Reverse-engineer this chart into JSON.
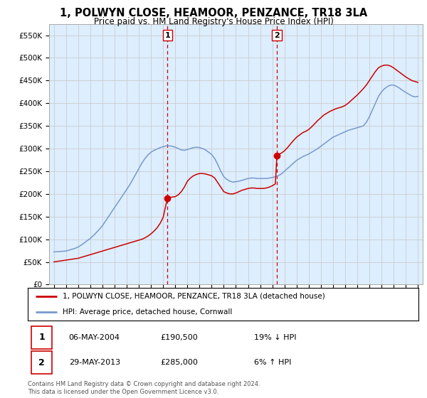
{
  "title": "1, POLWYN CLOSE, HEAMOOR, PENZANCE, TR18 3LA",
  "subtitle": "Price paid vs. HM Land Registry's House Price Index (HPI)",
  "ylim": [
    0,
    575000
  ],
  "transaction1": {
    "year": 2004.35,
    "price": 190500,
    "label": "1"
  },
  "transaction2": {
    "year": 2013.38,
    "price": 285000,
    "label": "2"
  },
  "legend_line1": "1, POLWYN CLOSE, HEAMOOR, PENZANCE, TR18 3LA (detached house)",
  "legend_line2": "HPI: Average price, detached house, Cornwall",
  "table_row1": [
    "1",
    "06-MAY-2004",
    "£190,500",
    "19% ↓ HPI"
  ],
  "table_row2": [
    "2",
    "29-MAY-2013",
    "£285,000",
    "6% ↑ HPI"
  ],
  "footer1": "Contains HM Land Registry data © Crown copyright and database right 2024.",
  "footer2": "This data is licensed under the Open Government Licence v3.0.",
  "line_red_color": "#cc0000",
  "line_blue_color": "#7799cc",
  "marker_color": "#cc0000",
  "grid_color": "#cccccc",
  "background_color": "#ffffff",
  "plot_bg_color": "#ddeeff",
  "hpi_x": [
    1995.0,
    1995.25,
    1995.5,
    1995.75,
    1996.0,
    1996.25,
    1996.5,
    1996.75,
    1997.0,
    1997.25,
    1997.5,
    1997.75,
    1998.0,
    1998.25,
    1998.5,
    1998.75,
    1999.0,
    1999.25,
    1999.5,
    1999.75,
    2000.0,
    2000.25,
    2000.5,
    2000.75,
    2001.0,
    2001.25,
    2001.5,
    2001.75,
    2002.0,
    2002.25,
    2002.5,
    2002.75,
    2003.0,
    2003.25,
    2003.5,
    2003.75,
    2004.0,
    2004.25,
    2004.5,
    2004.75,
    2005.0,
    2005.25,
    2005.5,
    2005.75,
    2006.0,
    2006.25,
    2006.5,
    2006.75,
    2007.0,
    2007.25,
    2007.5,
    2007.75,
    2008.0,
    2008.25,
    2008.5,
    2008.75,
    2009.0,
    2009.25,
    2009.5,
    2009.75,
    2010.0,
    2010.25,
    2010.5,
    2010.75,
    2011.0,
    2011.25,
    2011.5,
    2011.75,
    2012.0,
    2012.25,
    2012.5,
    2012.75,
    2013.0,
    2013.25,
    2013.5,
    2013.75,
    2014.0,
    2014.25,
    2014.5,
    2014.75,
    2015.0,
    2015.25,
    2015.5,
    2015.75,
    2016.0,
    2016.25,
    2016.5,
    2016.75,
    2017.0,
    2017.25,
    2017.5,
    2017.75,
    2018.0,
    2018.25,
    2018.5,
    2018.75,
    2019.0,
    2019.25,
    2019.5,
    2019.75,
    2020.0,
    2020.25,
    2020.5,
    2020.75,
    2021.0,
    2021.25,
    2021.5,
    2021.75,
    2022.0,
    2022.25,
    2022.5,
    2022.75,
    2023.0,
    2023.25,
    2023.5,
    2023.75,
    2024.0,
    2024.25,
    2024.5,
    2024.75,
    2025.0
  ],
  "hpi_y": [
    72000,
    72500,
    73000,
    73500,
    74000,
    76000,
    78000,
    80000,
    83000,
    87000,
    92000,
    97000,
    102000,
    108000,
    115000,
    122000,
    130000,
    140000,
    150000,
    160000,
    170000,
    180000,
    190000,
    200000,
    210000,
    220000,
    232000,
    244000,
    256000,
    268000,
    278000,
    286000,
    292000,
    296000,
    299000,
    302000,
    304000,
    306000,
    306000,
    305000,
    303000,
    300000,
    297000,
    296000,
    298000,
    300000,
    302000,
    303000,
    302000,
    300000,
    297000,
    292000,
    287000,
    278000,
    265000,
    250000,
    238000,
    232000,
    228000,
    226000,
    227000,
    228000,
    230000,
    232000,
    234000,
    235000,
    235000,
    234000,
    234000,
    234000,
    234000,
    235000,
    236000,
    238000,
    240000,
    244000,
    250000,
    256000,
    262000,
    268000,
    274000,
    278000,
    282000,
    285000,
    288000,
    292000,
    296000,
    300000,
    305000,
    310000,
    315000,
    320000,
    325000,
    328000,
    331000,
    334000,
    337000,
    340000,
    342000,
    344000,
    346000,
    348000,
    350000,
    358000,
    370000,
    385000,
    400000,
    415000,
    425000,
    432000,
    437000,
    440000,
    440000,
    437000,
    433000,
    428000,
    424000,
    420000,
    416000,
    414000,
    415000
  ],
  "price_x": [
    1995.0,
    1995.25,
    1995.5,
    1995.75,
    1996.0,
    1996.25,
    1996.5,
    1996.75,
    1997.0,
    1997.25,
    1997.5,
    1997.75,
    1998.0,
    1998.25,
    1998.5,
    1998.75,
    1999.0,
    1999.25,
    1999.5,
    1999.75,
    2000.0,
    2000.25,
    2000.5,
    2000.75,
    2001.0,
    2001.25,
    2001.5,
    2001.75,
    2002.0,
    2002.25,
    2002.5,
    2002.75,
    2003.0,
    2003.25,
    2003.5,
    2003.75,
    2004.0,
    2004.35,
    2004.5,
    2004.75,
    2005.0,
    2005.25,
    2005.5,
    2005.75,
    2006.0,
    2006.25,
    2006.5,
    2006.75,
    2007.0,
    2007.25,
    2007.5,
    2007.75,
    2008.0,
    2008.25,
    2008.5,
    2008.75,
    2009.0,
    2009.25,
    2009.5,
    2009.75,
    2010.0,
    2010.25,
    2010.5,
    2010.75,
    2011.0,
    2011.25,
    2011.5,
    2011.75,
    2012.0,
    2012.25,
    2012.5,
    2012.75,
    2013.0,
    2013.25,
    2013.38,
    2013.5,
    2013.75,
    2014.0,
    2014.25,
    2014.5,
    2014.75,
    2015.0,
    2015.25,
    2015.5,
    2015.75,
    2016.0,
    2016.25,
    2016.5,
    2016.75,
    2017.0,
    2017.25,
    2017.5,
    2017.75,
    2018.0,
    2018.25,
    2018.5,
    2018.75,
    2019.0,
    2019.25,
    2019.5,
    2019.75,
    2020.0,
    2020.25,
    2020.5,
    2020.75,
    2021.0,
    2021.25,
    2021.5,
    2021.75,
    2022.0,
    2022.25,
    2022.5,
    2022.75,
    2023.0,
    2023.25,
    2023.5,
    2023.75,
    2024.0,
    2024.25,
    2024.5,
    2024.75,
    2025.0
  ],
  "price_y": [
    50000,
    51000,
    52000,
    53000,
    54000,
    55000,
    56000,
    57000,
    58000,
    60000,
    62000,
    64000,
    66000,
    68000,
    70000,
    72000,
    74000,
    76000,
    78000,
    80000,
    82000,
    84000,
    86000,
    88000,
    90000,
    92000,
    94000,
    96000,
    98000,
    100000,
    103000,
    107000,
    112000,
    118000,
    125000,
    135000,
    148000,
    190500,
    192000,
    193000,
    194000,
    198000,
    205000,
    215000,
    228000,
    235000,
    240000,
    243000,
    245000,
    245000,
    244000,
    242000,
    240000,
    235000,
    225000,
    215000,
    205000,
    202000,
    200000,
    200000,
    202000,
    205000,
    208000,
    210000,
    212000,
    213000,
    213000,
    212000,
    212000,
    212000,
    213000,
    215000,
    218000,
    222000,
    285000,
    287000,
    290000,
    295000,
    302000,
    310000,
    318000,
    325000,
    330000,
    335000,
    338000,
    342000,
    348000,
    355000,
    362000,
    368000,
    374000,
    378000,
    382000,
    385000,
    388000,
    390000,
    392000,
    395000,
    400000,
    406000,
    412000,
    418000,
    425000,
    432000,
    440000,
    450000,
    460000,
    470000,
    478000,
    482000,
    484000,
    484000,
    482000,
    478000,
    473000,
    468000,
    463000,
    458000,
    454000,
    450000,
    448000,
    446000
  ]
}
